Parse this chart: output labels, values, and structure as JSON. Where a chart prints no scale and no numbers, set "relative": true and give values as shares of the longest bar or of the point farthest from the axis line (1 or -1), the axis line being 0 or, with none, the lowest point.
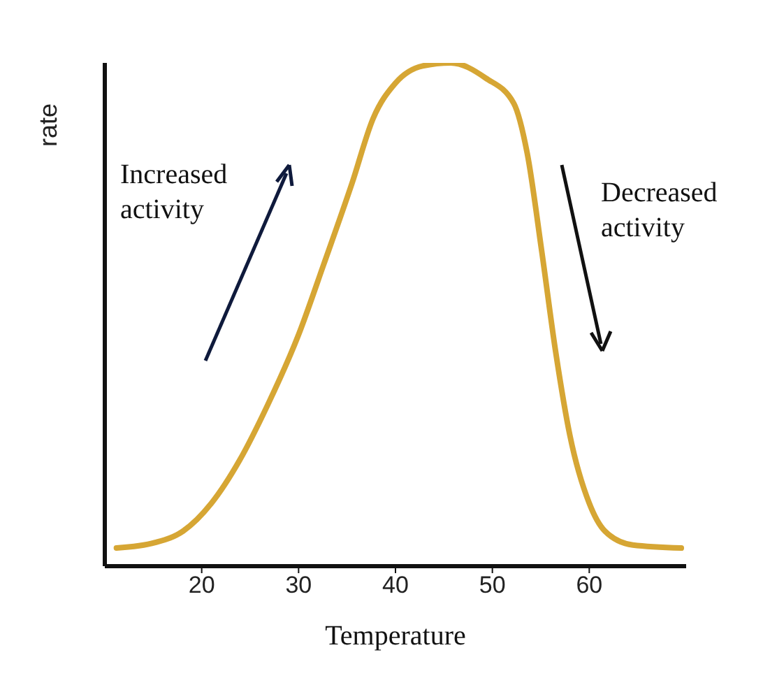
{
  "chart_data": {
    "type": "line",
    "xlabel": "Temperature",
    "ylabel": "rate",
    "relative": true,
    "tick_labels": "x",
    "grid": false,
    "marker": "none",
    "line_style": "solid",
    "xlim": [
      10,
      70
    ],
    "xticks": [
      20,
      30,
      40,
      50,
      60
    ],
    "annotations": [
      "Increased activity",
      "Decreased activity"
    ],
    "series": [
      {
        "color": "#d6a634",
        "x": [
          11.2,
          15.2,
          18.1,
          21,
          23.9,
          26.8,
          30,
          32.6,
          35.5,
          37.7,
          40,
          42.8,
          45.7,
          49.3,
          52.2,
          53.6,
          55.1,
          56.5,
          58,
          60,
          61.6,
          64.5,
          69.5
        ],
        "values": [
          0.036,
          0.047,
          0.07,
          0.125,
          0.21,
          0.32,
          0.46,
          0.6,
          0.76,
          0.89,
          0.96,
          0.994,
          1,
          0.97,
          0.92,
          0.82,
          0.625,
          0.43,
          0.26,
          0.125,
          0.07,
          0.042,
          0.036
        ]
      }
    ]
  }
}
